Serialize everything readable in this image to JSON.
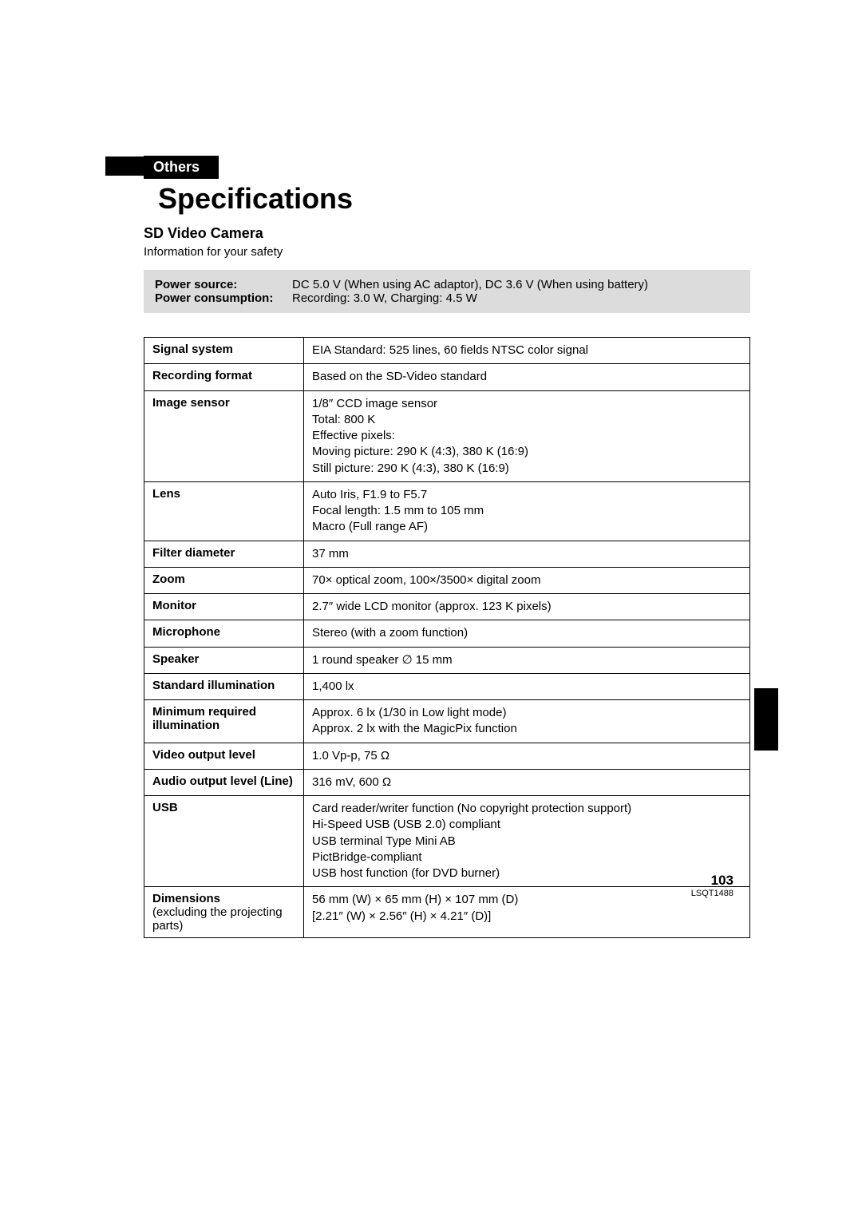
{
  "tab_label": "Others",
  "main_title": "Specifications",
  "sub_title": "SD Video Camera",
  "info_safety": "Information for your safety",
  "gray_box": {
    "rows": [
      {
        "label": "Power source:",
        "value": "DC 5.0 V (When using AC adaptor), DC 3.6 V (When using battery)"
      },
      {
        "label": "Power consumption:",
        "value": "Recording: 3.0 W, Charging: 4.5 W"
      }
    ]
  },
  "spec_rows": [
    {
      "label": "Signal system",
      "value": "EIA Standard: 525 lines, 60 fields NTSC color signal"
    },
    {
      "label": "Recording format",
      "value": "Based on the SD-Video standard"
    },
    {
      "label": "Image sensor",
      "value": "1/8″ CCD image sensor\nTotal: 800 K\nEffective pixels:\nMoving picture: 290 K (4:3), 380 K (16:9)\nStill picture: 290 K (4:3), 380 K (16:9)"
    },
    {
      "label": "Lens",
      "value": "Auto Iris, F1.9 to F5.7\nFocal length: 1.5 mm to 105 mm\nMacro (Full range AF)"
    },
    {
      "label": "Filter diameter",
      "value": "37 mm"
    },
    {
      "label": "Zoom",
      "value": "70× optical zoom, 100×/3500× digital zoom"
    },
    {
      "label": "Monitor",
      "value": "2.7″ wide LCD monitor (approx. 123 K pixels)"
    },
    {
      "label": "Microphone",
      "value": "Stereo (with a zoom function)"
    },
    {
      "label": "Speaker",
      "value": "1 round speaker ∅ 15 mm"
    },
    {
      "label": "Standard illumination",
      "value": "1,400 lx"
    },
    {
      "label": "Minimum required illumination",
      "value": "Approx. 6 lx (1/30 in Low light mode)\nApprox. 2 lx with the MagicPix function"
    },
    {
      "label": "Video output level",
      "value": "1.0 Vp-p, 75 Ω"
    },
    {
      "label": "Audio output level (Line)",
      "value": "316 mV, 600 Ω"
    },
    {
      "label": "USB",
      "value": "Card reader/writer function (No copyright protection support)\nHi-Speed USB (USB 2.0) compliant\nUSB terminal Type Mini AB\nPictBridge-compliant\nUSB host function (for DVD burner)"
    },
    {
      "label": "Dimensions",
      "sublabel": "(excluding the projecting parts)",
      "value": "56 mm (W) × 65 mm (H) × 107 mm (D)\n[2.21″ (W) × 2.56″ (H) × 4.21″ (D)]"
    }
  ],
  "page_number": "103",
  "doc_code": "LSQT1488"
}
